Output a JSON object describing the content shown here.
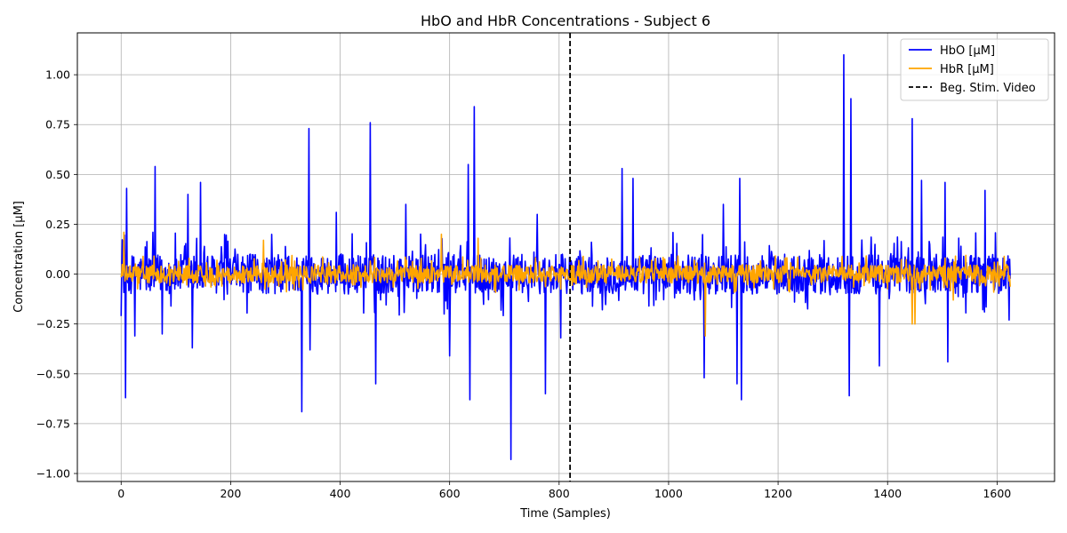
{
  "chart_data": {
    "type": "line",
    "title": "HbO and HbR Concentrations - Subject 6",
    "xlabel": "Time (Samples)",
    "ylabel": "Concentration [µM]",
    "xlim": [
      -80,
      1705
    ],
    "ylim": [
      -1.04,
      1.21
    ],
    "xticks": [
      0,
      200,
      400,
      600,
      800,
      1000,
      1200,
      1400,
      1600
    ],
    "yticks": [
      -1.0,
      -0.75,
      -0.5,
      -0.25,
      0.0,
      0.25,
      0.5,
      0.75,
      1.0
    ],
    "ytick_labels": [
      "−1.00",
      "−0.75",
      "−0.50",
      "−0.25",
      "0.00",
      "0.25",
      "0.50",
      "0.75",
      "1.00"
    ],
    "grid": true,
    "legend_position": "top-right",
    "num_samples": 1625,
    "series": [
      {
        "name": "HbO [µM]",
        "color": "#0000ff",
        "noise_amplitude": 0.1,
        "peaks": [
          [
            0,
            -0.21
          ],
          [
            3,
            0.16
          ],
          [
            8,
            -0.62
          ],
          [
            10,
            0.43
          ],
          [
            25,
            -0.31
          ],
          [
            62,
            0.54
          ],
          [
            75,
            -0.3
          ],
          [
            122,
            0.4
          ],
          [
            130,
            -0.37
          ],
          [
            145,
            0.46
          ],
          [
            330,
            -0.69
          ],
          [
            343,
            0.73
          ],
          [
            345,
            -0.38
          ],
          [
            393,
            0.31
          ],
          [
            455,
            0.76
          ],
          [
            465,
            -0.55
          ],
          [
            520,
            0.35
          ],
          [
            590,
            -0.2
          ],
          [
            600,
            -0.41
          ],
          [
            634,
            0.55
          ],
          [
            637,
            -0.63
          ],
          [
            645,
            0.84
          ],
          [
            712,
            -0.93
          ],
          [
            760,
            0.3
          ],
          [
            775,
            -0.6
          ],
          [
            803,
            -0.32
          ],
          [
            915,
            0.53
          ],
          [
            935,
            0.48
          ],
          [
            1065,
            -0.52
          ],
          [
            1100,
            0.35
          ],
          [
            1125,
            -0.55
          ],
          [
            1130,
            0.48
          ],
          [
            1133,
            -0.63
          ],
          [
            1320,
            1.1
          ],
          [
            1330,
            -0.61
          ],
          [
            1333,
            0.88
          ],
          [
            1385,
            -0.46
          ],
          [
            1445,
            0.78
          ],
          [
            1462,
            0.47
          ],
          [
            1505,
            0.46
          ],
          [
            1510,
            -0.44
          ],
          [
            1578,
            0.42
          ],
          [
            1622,
            -0.23
          ]
        ]
      },
      {
        "name": "HbR [µM]",
        "color": "#ffa500",
        "noise_amplitude": 0.045,
        "peaks": [
          [
            5,
            0.21
          ],
          [
            260,
            0.17
          ],
          [
            585,
            0.2
          ],
          [
            652,
            0.18
          ],
          [
            1067,
            -0.31
          ],
          [
            1445,
            -0.25
          ],
          [
            1450,
            -0.25
          ],
          [
            1520,
            -0.13
          ]
        ]
      }
    ],
    "vline": {
      "name": "Beg. Stim. Video",
      "x": 820,
      "color": "#000000",
      "style": "dashed"
    }
  }
}
